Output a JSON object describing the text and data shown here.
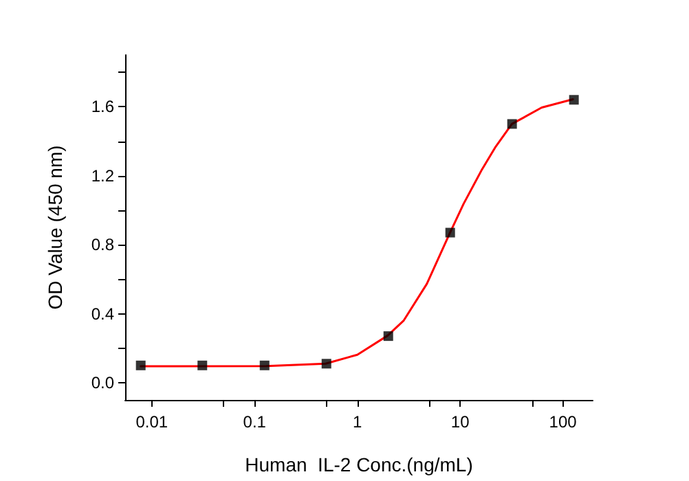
{
  "chart_data": {
    "type": "scatter",
    "xlabel": "Human  IL-2 Conc.(ng/mL)",
    "ylabel": "OD Value (450 nm)",
    "log": "x",
    "xlim": [
      0.0055,
      195
    ],
    "xticks": [
      0.01,
      0.1,
      1,
      10,
      100,
      {
        "value": 0.05,
        "label": null
      },
      {
        "value": 0.5,
        "label": null
      },
      {
        "value": 5,
        "label": null
      },
      {
        "value": 50,
        "label": null
      }
    ],
    "ylim": [
      -0.1,
      1.9
    ],
    "yticks": [
      {
        "value": 0,
        "label": "0.0"
      },
      {
        "value": 0.4,
        "label": "0.4"
      },
      {
        "value": 0.8,
        "label": "0.8"
      },
      {
        "value": 1.2,
        "label": "1.2"
      },
      {
        "value": 1.6,
        "label": "1.6"
      },
      {
        "value": 0.2,
        "label": null
      },
      {
        "value": 0.6,
        "label": null
      },
      {
        "value": 1.0,
        "label": null
      },
      {
        "value": 1.4,
        "label": null
      },
      {
        "value": 1.8,
        "label": null
      }
    ],
    "grid": false,
    "series": [
      {
        "type": "line",
        "color": "#ff0000",
        "marker": "none",
        "line_style": "solid",
        "x": [
          0.0078,
          0.13,
          0.49,
          1.0,
          1.97,
          2.83,
          4.74,
          7.9,
          10.8,
          16.3,
          22.2,
          31.9,
          62.2,
          125
        ],
        "values": [
          0.095,
          0.096,
          0.11,
          0.162,
          0.273,
          0.361,
          0.573,
          0.865,
          1.037,
          1.236,
          1.369,
          1.5,
          1.595,
          1.643
        ]
      },
      {
        "color": "#000000",
        "marker": "square",
        "x": [
          0.0078,
          0.031,
          0.125,
          0.5,
          2,
          8,
          32,
          128
        ],
        "values": [
          0.1,
          0.1,
          0.1,
          0.11,
          0.27,
          0.87,
          1.5,
          1.64
        ]
      }
    ]
  }
}
